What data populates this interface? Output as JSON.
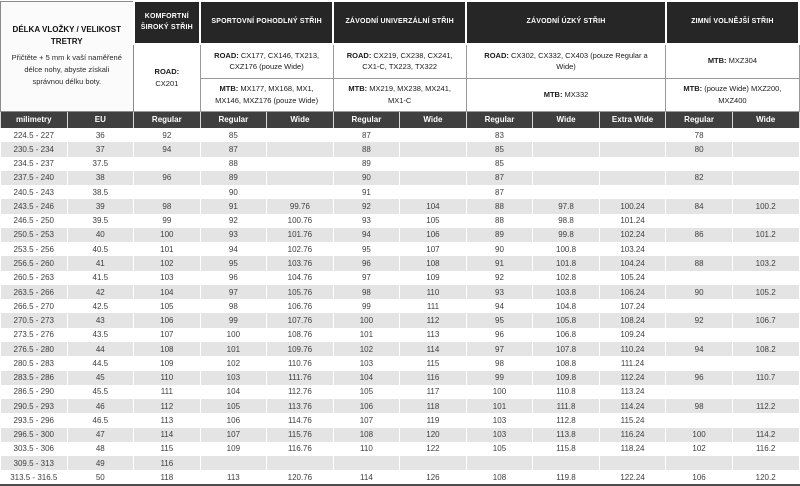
{
  "header": {
    "title": "DÉLKA VLOŽKY / VELIKOST TRETRY",
    "subtitle": "Přičtěte + 5 mm k vaší naměřené délce nohy, abyste získali správnou délku boty.",
    "groups": [
      {
        "label": "KOMFORTNÍ ŠIROKÝ STŘIH"
      },
      {
        "label": "SPORTOVNÍ POHODLNÝ STŘIH"
      },
      {
        "label": "ZÁVODNÍ UNIVERZÁLNÍ STŘIH"
      },
      {
        "label": "ZÁVODNÍ ÚZKÝ STŘIH"
      },
      {
        "label": "ZIMNÍ VOLNĚJŠÍ STŘIH"
      }
    ]
  },
  "models": {
    "comfort_road": {
      "prefix": "ROAD:",
      "text": " CX201"
    },
    "sport_road": {
      "prefix": "ROAD:",
      "text": " CX177, CX146, TX213, CXZ176 (pouze Wide)"
    },
    "sport_mtb": {
      "prefix": "MTB:",
      "text": " MX177, MX168, MX1, MX146, MXZ176 (pouze Wide)"
    },
    "race_universal_road": {
      "prefix": "ROAD:",
      "text": " CX219, CX238, CX241, CX1-C, TX223, TX322"
    },
    "race_universal_mtb": {
      "prefix": "MTB:",
      "text": " MX219, MX238, MX241, MX1-C"
    },
    "race_narrow_road": {
      "prefix": "ROAD:",
      "text": " CX302, CX332, CX403 (pouze Regular a Wide)"
    },
    "race_narrow_mtb": {
      "prefix": "MTB:",
      "text": " MX332"
    },
    "winter_mtb_1": {
      "prefix": "MTB:",
      "text": " MXZ304"
    },
    "winter_mtb_2": {
      "prefix": "MTB:",
      "text": " (pouze Wide) MXZ200, MXZ400"
    }
  },
  "table": {
    "columns": [
      "milimetry",
      "EU",
      "Regular",
      "Regular",
      "Wide",
      "Regular",
      "Wide",
      "Regular",
      "Wide",
      "Extra Wide",
      "Regular",
      "Wide"
    ],
    "rows": [
      [
        "224.5 - 227",
        "36",
        "92",
        "85",
        "",
        "87",
        "",
        "83",
        "",
        "",
        "78",
        ""
      ],
      [
        "230.5 - 234",
        "37",
        "94",
        "87",
        "",
        "88",
        "",
        "85",
        "",
        "",
        "80",
        ""
      ],
      [
        "234.5 - 237",
        "37.5",
        "",
        "88",
        "",
        "89",
        "",
        "85",
        "",
        "",
        "",
        ""
      ],
      [
        "237.5 - 240",
        "38",
        "96",
        "89",
        "",
        "90",
        "",
        "87",
        "",
        "",
        "82",
        ""
      ],
      [
        "240.5 - 243",
        "38.5",
        "",
        "90",
        "",
        "91",
        "",
        "87",
        "",
        "",
        "",
        ""
      ],
      [
        "243.5 - 246",
        "39",
        "98",
        "91",
        "99.76",
        "92",
        "104",
        "88",
        "97.8",
        "100.24",
        "84",
        "100.2"
      ],
      [
        "246.5 - 250",
        "39.5",
        "99",
        "92",
        "100.76",
        "93",
        "105",
        "88",
        "98.8",
        "101.24",
        "",
        ""
      ],
      [
        "250.5 - 253",
        "40",
        "100",
        "93",
        "101.76",
        "94",
        "106",
        "89",
        "99.8",
        "102.24",
        "86",
        "101.2"
      ],
      [
        "253.5 - 256",
        "40.5",
        "101",
        "94",
        "102.76",
        "95",
        "107",
        "90",
        "100.8",
        "103.24",
        "",
        ""
      ],
      [
        "256.5 - 260",
        "41",
        "102",
        "95",
        "103.76",
        "96",
        "108",
        "91",
        "101.8",
        "104.24",
        "88",
        "103.2"
      ],
      [
        "260.5 - 263",
        "41.5",
        "103",
        "96",
        "104.76",
        "97",
        "109",
        "92",
        "102.8",
        "105.24",
        "",
        ""
      ],
      [
        "263.5 - 266",
        "42",
        "104",
        "97",
        "105.76",
        "98",
        "110",
        "93",
        "103.8",
        "106.24",
        "90",
        "105.2"
      ],
      [
        "266.5 - 270",
        "42.5",
        "105",
        "98",
        "106.76",
        "99",
        "111",
        "94",
        "104.8",
        "107.24",
        "",
        ""
      ],
      [
        "270.5 - 273",
        "43",
        "106",
        "99",
        "107.76",
        "100",
        "112",
        "95",
        "105.8",
        "108.24",
        "92",
        "106.7"
      ],
      [
        "273.5 - 276",
        "43.5",
        "107",
        "100",
        "108.76",
        "101",
        "113",
        "96",
        "106.8",
        "109.24",
        "",
        ""
      ],
      [
        "276.5 - 280",
        "44",
        "108",
        "101",
        "109.76",
        "102",
        "114",
        "97",
        "107.8",
        "110.24",
        "94",
        "108.2"
      ],
      [
        "280.5 - 283",
        "44.5",
        "109",
        "102",
        "110.76",
        "103",
        "115",
        "98",
        "108.8",
        "111.24",
        "",
        ""
      ],
      [
        "283.5 - 286",
        "45",
        "110",
        "103",
        "111.76",
        "104",
        "116",
        "99",
        "109.8",
        "112.24",
        "96",
        "110.7"
      ],
      [
        "286.5 - 290",
        "45.5",
        "111",
        "104",
        "112.76",
        "105",
        "117",
        "100",
        "110.8",
        "113.24",
        "",
        ""
      ],
      [
        "290.5 - 293",
        "46",
        "112",
        "105",
        "113.76",
        "106",
        "118",
        "101",
        "111.8",
        "114.24",
        "98",
        "112.2"
      ],
      [
        "293.5 - 296",
        "46.5",
        "113",
        "106",
        "114.76",
        "107",
        "119",
        "103",
        "112.8",
        "115.24",
        "",
        ""
      ],
      [
        "296.5 - 300",
        "47",
        "114",
        "107",
        "115.76",
        "108",
        "120",
        "103",
        "113.8",
        "116.24",
        "100",
        "114.2"
      ],
      [
        "303.5 - 306",
        "48",
        "115",
        "109",
        "116.76",
        "110",
        "122",
        "105",
        "115.8",
        "118.24",
        "102",
        "116.2"
      ],
      [
        "309.5 - 313",
        "49",
        "116",
        "",
        "",
        "",
        "",
        "",
        "",
        "",
        "",
        ""
      ],
      [
        "313.5 - 316.5",
        "50",
        "118",
        "113",
        "120.76",
        "114",
        "126",
        "108",
        "119.8",
        "122.24",
        "106",
        "120.2"
      ]
    ]
  },
  "colors": {
    "group_header_bg": "#262626",
    "column_header_bg": "#3f3f3f",
    "alt_row_bg": "#e4e4e4",
    "text": "#404040"
  }
}
